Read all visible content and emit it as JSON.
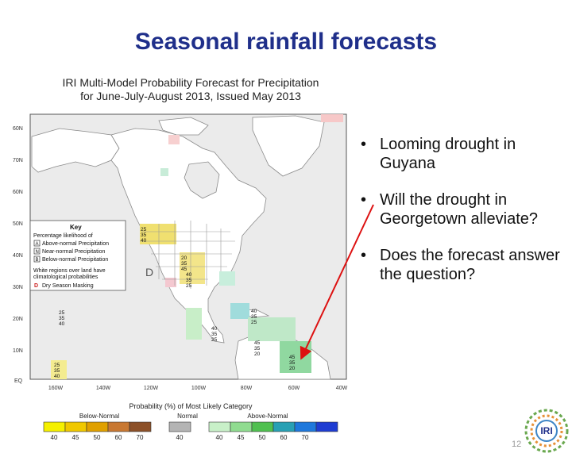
{
  "slide": {
    "title": "Seasonal rainfall forecasts",
    "page_number": "12",
    "logo_text": "IRI"
  },
  "map": {
    "title_line1": "IRI Multi-Model Probability Forecast for Precipitation",
    "title_line2": "for June-July-August 2013, Issued May 2013",
    "lat_labels": [
      "60N",
      "70N",
      "60N",
      "50N",
      "40N",
      "30N",
      "20N",
      "10N",
      "EQ"
    ],
    "lon_labels": [
      "160W",
      "140W",
      "120W",
      "100W",
      "80W",
      "60W",
      "40W"
    ],
    "key": {
      "title": "Key",
      "subtitle": "Percentage likelihood of",
      "items": [
        {
          "code": "A",
          "label": "Above-normal Precipitation"
        },
        {
          "code": "N",
          "label": "Near-normal Precipitation"
        },
        {
          "code": "B",
          "label": "Below-normal Precipitation"
        }
      ],
      "note_line1": "White regions over land have",
      "note_line2": "climatological probabilities",
      "dry_code": "D",
      "dry_label": "Dry Season Masking"
    },
    "map_marks": [
      {
        "text": "25"
      },
      {
        "text": "35"
      },
      {
        "text": "40"
      },
      {
        "text": "20"
      },
      {
        "text": "35"
      },
      {
        "text": "45"
      },
      {
        "text": "D"
      },
      {
        "text": "40"
      },
      {
        "text": "35"
      },
      {
        "text": "25"
      },
      {
        "text": "40"
      },
      {
        "text": "35"
      },
      {
        "text": "25"
      },
      {
        "text": "40"
      },
      {
        "text": "35"
      },
      {
        "text": "25"
      },
      {
        "text": "25"
      },
      {
        "text": "35"
      },
      {
        "text": "40"
      },
      {
        "text": "45"
      },
      {
        "text": "35"
      },
      {
        "text": "20"
      },
      {
        "text": "45"
      },
      {
        "text": "35"
      },
      {
        "text": "20"
      },
      {
        "text": "25"
      },
      {
        "text": "35"
      },
      {
        "text": "40"
      }
    ],
    "legend": {
      "title": "Probability (%) of Most Likely Category",
      "below_label": "Below-Normal",
      "normal_label": "Normal",
      "above_label": "Above-Normal",
      "below_ticks": [
        "40",
        "45",
        "50",
        "60",
        "70"
      ],
      "normal_ticks": [
        "40"
      ],
      "above_ticks": [
        "40",
        "45",
        "50",
        "60",
        "70"
      ],
      "below_colors": [
        "#f5f000",
        "#f0c800",
        "#e0a000",
        "#c87832",
        "#8c5028"
      ],
      "normal_colors": [
        "#b4b4b4"
      ],
      "above_colors": [
        "#c8f0c8",
        "#90dc90",
        "#50c050",
        "#28a0b4",
        "#1e78dc",
        "#1e3cd2"
      ]
    }
  },
  "bullets": [
    {
      "text": "Looming drought in Guyana"
    },
    {
      "text": "Will the drought in Georgetown alleviate?"
    },
    {
      "text": "Does the forecast answer the question?"
    }
  ],
  "colors": {
    "title": "#1f2f8a",
    "arrow": "#dd1111",
    "ocean": "#ebebeb",
    "land": "#ffffff",
    "border": "#9a9a9a"
  }
}
